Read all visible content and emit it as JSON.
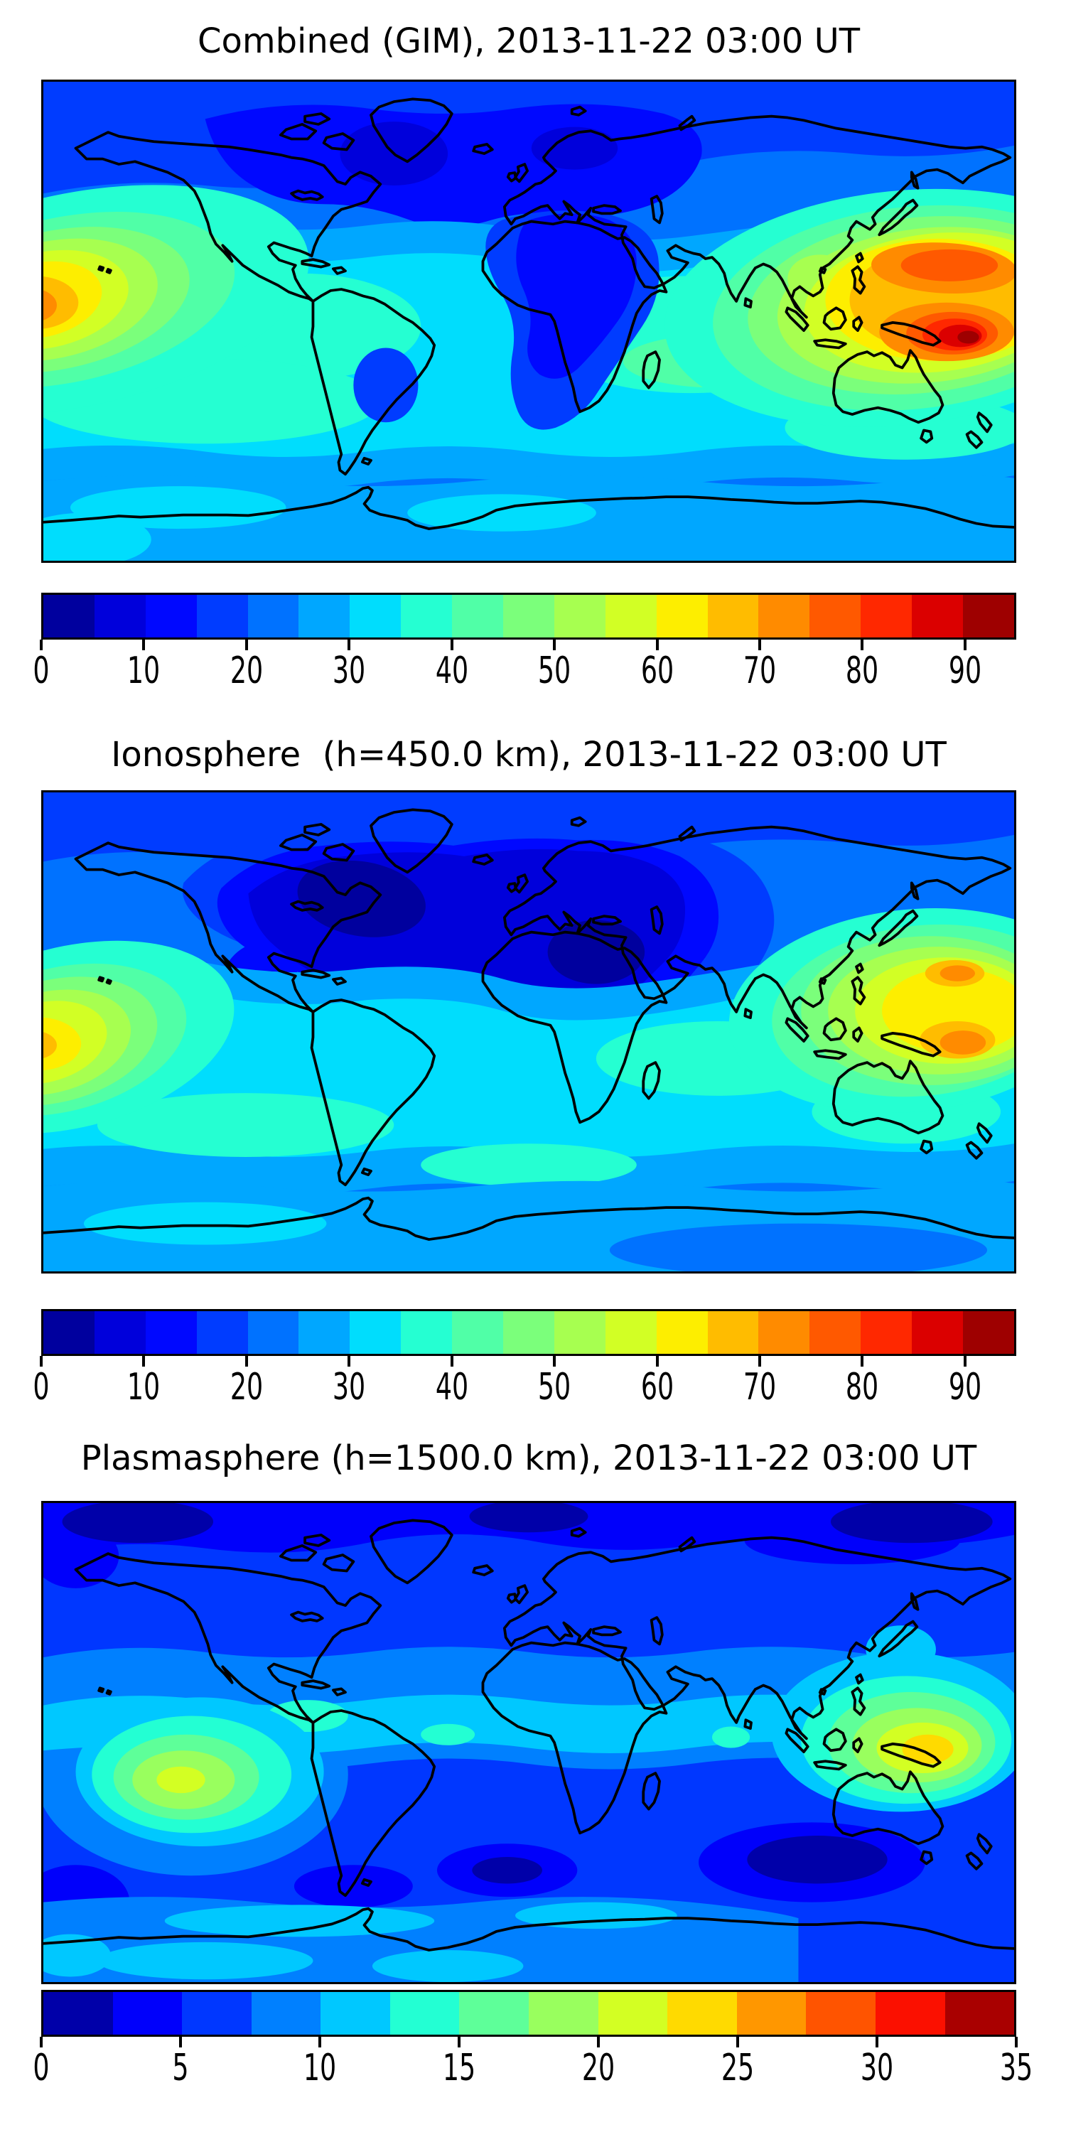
{
  "figure": {
    "background": "#ffffff",
    "panels": [
      {
        "id": "combined-gim",
        "title": "Combined (GIM), 2013-11-22 03:00 UT",
        "map": {
          "kind": "filled-contour world map",
          "projection": "equirectangular",
          "lon_range": [
            -180,
            180
          ],
          "lat_range": [
            -90,
            90
          ],
          "colormap": "jet (discrete)",
          "high_regions": "intense maximum over New Guinea / west Pacific (dark red ~90+), secondary orange core over Philippine Sea, strong orange maximum at left edge of central Pacific",
          "low_regions": "dark blue minimum over NE Canada, Greenland, North Atlantic and northern Europe; blue tongue down Africa and South Atlantic"
        },
        "colorbar": {
          "vmin": 0,
          "vmax": 95,
          "level_step": 5,
          "segment_colors": [
            "#00009E",
            "#0000DB",
            "#0008FF",
            "#003CFF",
            "#0072FF",
            "#00A7FF",
            "#00DDFD",
            "#25FFD2",
            "#50FFA7",
            "#7BFF7B",
            "#A7FF50",
            "#D2FF25",
            "#FDEE00",
            "#FFBC00",
            "#FF8B00",
            "#FF5900",
            "#FF2800",
            "#DB0000",
            "#9E0000"
          ],
          "tick_values": [
            0,
            10,
            20,
            30,
            40,
            50,
            60,
            70,
            80,
            90
          ],
          "tick_labels": [
            "0",
            "10",
            "20",
            "30",
            "40",
            "50",
            "60",
            "70",
            "80",
            "90"
          ]
        }
      },
      {
        "id": "ionosphere",
        "title": "Ionosphere  (h=450.0 km), 2013-11-22 03:00 UT",
        "map": {
          "kind": "filled-contour world map",
          "projection": "equirectangular",
          "lon_range": [
            -180,
            180
          ],
          "lat_range": [
            -90,
            90
          ],
          "colormap": "jet (discrete)",
          "high_regions": "yellow/orange maximum over SE Asia - New Guinea with two orange cores; yellow maximum at left edge of Pacific",
          "low_regions": "very dark blue region covering North America, North Atlantic, Europe, North Africa and Middle East"
        },
        "colorbar": {
          "vmin": 0,
          "vmax": 95,
          "level_step": 5,
          "segment_colors": [
            "#00009E",
            "#0000DB",
            "#0008FF",
            "#003CFF",
            "#0072FF",
            "#00A7FF",
            "#00DDFD",
            "#25FFD2",
            "#50FFA7",
            "#7BFF7B",
            "#A7FF50",
            "#D2FF25",
            "#FDEE00",
            "#FFBC00",
            "#FF8B00",
            "#FF5900",
            "#FF2800",
            "#DB0000",
            "#9E0000"
          ],
          "tick_values": [
            0,
            10,
            20,
            30,
            40,
            50,
            60,
            70,
            80,
            90
          ],
          "tick_labels": [
            "0",
            "10",
            "20",
            "30",
            "40",
            "50",
            "60",
            "70",
            "80",
            "90"
          ]
        }
      },
      {
        "id": "plasmasphere",
        "title": "Plasmasphere (h=1500.0 km), 2013-11-22 03:00 UT",
        "map": {
          "kind": "filled-contour world map",
          "projection": "equirectangular",
          "lon_range": [
            -180,
            180
          ],
          "lat_range": [
            -90,
            90
          ],
          "colormap": "jet (discrete)",
          "high_regions": "yellow maximum over Indonesia / New Guinea; green-yellow maximum in south-central Pacific west of South America; cyan equatorial belt",
          "low_regions": "dark navy polar bands along top and bottom; navy patches in southern Indian Ocean and South Atlantic"
        },
        "colorbar": {
          "vmin": 0,
          "vmax": 35,
          "level_step": 2.5,
          "segment_colors": [
            "#0000A9",
            "#0000FB",
            "#0037FF",
            "#0080FF",
            "#00C8FF",
            "#23FFD3",
            "#5EFF99",
            "#99FF5E",
            "#D3FF23",
            "#FFDA00",
            "#FF9700",
            "#FF5400",
            "#FB1000",
            "#A90000"
          ],
          "tick_values": [
            0,
            5,
            10,
            15,
            20,
            25,
            30,
            35
          ],
          "tick_labels": [
            "0",
            "5",
            "10",
            "15",
            "20",
            "25",
            "30",
            "35"
          ]
        }
      }
    ]
  }
}
